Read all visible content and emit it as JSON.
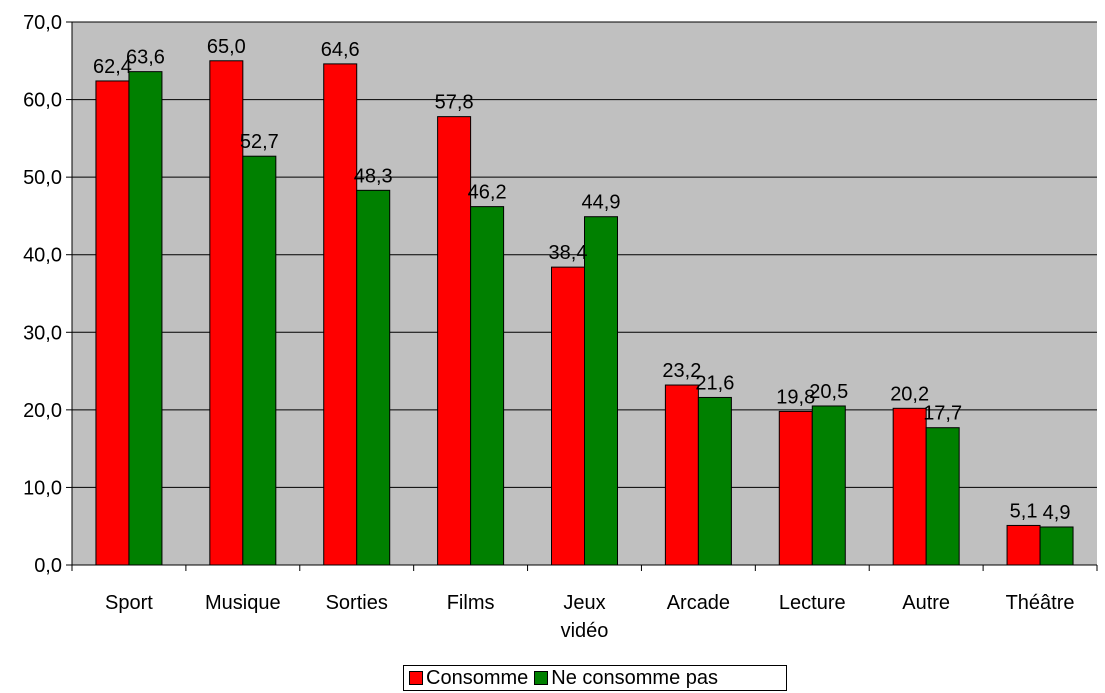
{
  "chart_data": {
    "type": "bar",
    "categories": [
      "Sport",
      "Musique",
      "Sorties",
      "Films",
      "Jeux vidéo",
      "Arcade",
      "Lecture",
      "Autre",
      "Théâtre"
    ],
    "series": [
      {
        "name": "Consomme",
        "color": "#ff0000",
        "values": [
          62.4,
          65.0,
          64.6,
          57.8,
          38.4,
          23.2,
          19.8,
          20.2,
          5.1
        ]
      },
      {
        "name": "Ne consomme pas",
        "color": "#008000",
        "values": [
          63.6,
          52.7,
          48.3,
          46.2,
          44.9,
          21.6,
          20.5,
          17.7,
          4.9
        ]
      }
    ],
    "ylim": [
      0,
      70
    ],
    "yticks": [
      "0,0",
      "10,0",
      "20,0",
      "30,0",
      "40,0",
      "50,0",
      "60,0",
      "70,0"
    ],
    "grid": true,
    "plot_background": "#c0c0c0",
    "legend_position": "bottom",
    "title": "",
    "xlabel": "",
    "ylabel": ""
  }
}
